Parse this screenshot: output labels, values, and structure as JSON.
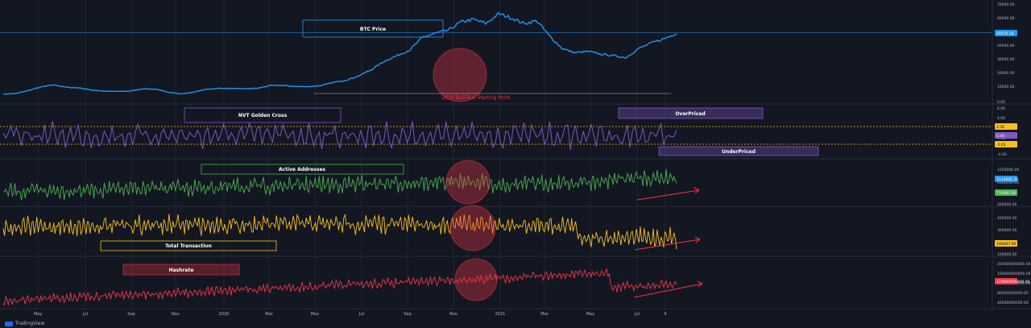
{
  "app": {
    "brand": "TradingView"
  },
  "colors": {
    "background": "#131722",
    "btc": "#2196f3",
    "nvt": "#7e57c2",
    "active": "#4caf50",
    "tx": "#f9c01e",
    "hash": "#f23645",
    "annot_red": "#f23645"
  },
  "x_axis": {
    "ticks": [
      "May",
      "Jul",
      "Sep",
      "Nov",
      "2020",
      "Mar",
      "May",
      "Jul",
      "Sep",
      "Nov",
      "2021",
      "Mar",
      "May",
      "Jul",
      "9"
    ]
  },
  "chart_data": [
    {
      "type": "line",
      "name": "btc",
      "label": "BTC Price",
      "y_ticks": [
        "70000.00",
        "60000.00",
        "50000.00",
        "40000.00",
        "30000.00",
        "20000.00",
        "10000.00",
        "0.00"
      ],
      "last_value_label": "49076.58",
      "annotations": [
        "2020 Bull-Run Starting Point"
      ],
      "values": [
        5300,
        5800,
        8000,
        10500,
        12000,
        10200,
        9800,
        8200,
        7400,
        7300,
        7500,
        9200,
        8800,
        6800,
        5400,
        6800,
        8800,
        9500,
        9300,
        9200,
        9500,
        11500,
        11600,
        10800,
        10700,
        11400,
        13800,
        15300,
        18500,
        23000,
        29000,
        33000,
        37000,
        46000,
        49000,
        51000,
        57000,
        59000,
        56000,
        63000,
        60000,
        56000,
        58000,
        47000,
        38000,
        35000,
        36000,
        34000,
        33000,
        31500,
        38000,
        42000,
        45000,
        49076
      ]
    },
    {
      "type": "line",
      "name": "nvt",
      "label": "NVT Golden Cross",
      "y_ticks": [
        "6.00",
        "4.00",
        "2.56",
        "0.40",
        "0.00",
        "-1.61",
        "-4.00"
      ],
      "annotations": [
        "OverPriced",
        "UnderPriced"
      ]
    },
    {
      "type": "line",
      "name": "active_addresses",
      "label": "Active Addresses",
      "y_ticks": [
        "1250000.00",
        "1000000.00",
        "750000.00",
        "500000.00"
      ],
      "last_value_labels": [
        "1014985.24",
        "716981.00"
      ]
    },
    {
      "type": "line",
      "name": "total_transaction",
      "label": "Total Transaction",
      "y_ticks": [
        "450000.00",
        "300000.00",
        "190407.00",
        "100000.00"
      ],
      "last_value_label": "190407.00"
    },
    {
      "type": "line",
      "name": "hashrate",
      "label": "Hashrate",
      "y_ticks": [
        "200000000000.00",
        "160000000000.00",
        "120000000000.00",
        "80000000000.00",
        "40000000000.00"
      ],
      "last_value_label": "120000000000.00"
    }
  ]
}
